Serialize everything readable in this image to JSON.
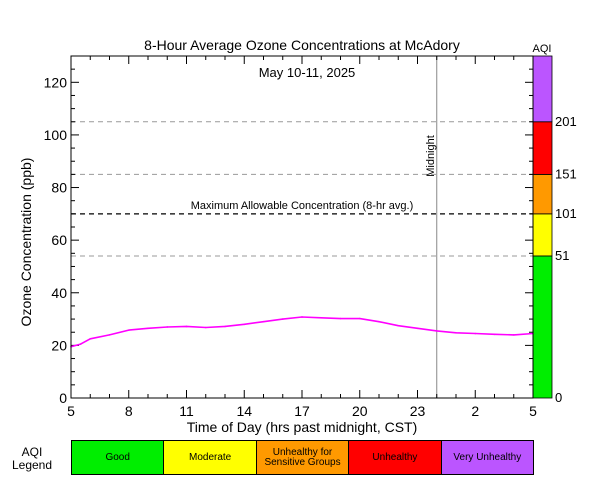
{
  "chart_data": {
    "type": "line",
    "title": "8-Hour Average Ozone Concentrations at McAdory",
    "subtitle": "May 10-11, 2025",
    "xlabel": "Time of Day (hrs past midnight, CST)",
    "ylabel": "Ozone Concentration (ppb)",
    "x_ticks": [
      "5",
      "8",
      "11",
      "14",
      "17",
      "20",
      "23",
      "2",
      "5"
    ],
    "xlim": [
      5,
      29
    ],
    "ylim": [
      0,
      130
    ],
    "y_ticks": [
      0,
      20,
      40,
      60,
      80,
      100,
      120
    ],
    "grid": false,
    "series": [
      {
        "color": "#ff00ff",
        "x": [
          5,
          5.5,
          6,
          7,
          8,
          9,
          10,
          11,
          12,
          13,
          14,
          15,
          16,
          17,
          18,
          19,
          20,
          21,
          22,
          23,
          24,
          25,
          26,
          27,
          28,
          29
        ],
        "y": [
          19.5,
          20.5,
          22.5,
          24,
          25.8,
          26.5,
          27,
          27.2,
          26.8,
          27.2,
          28,
          29,
          30,
          30.8,
          30.5,
          30.2,
          30.2,
          29,
          27.5,
          26.5,
          25.5,
          24.8,
          24.5,
          24.2,
          24,
          24.5
        ]
      }
    ],
    "reference_lines": [
      {
        "y": 54,
        "style": "dashed",
        "color": "#999999"
      },
      {
        "y": 70,
        "style": "dashed",
        "color": "#000000",
        "label": "Maximum Allowable Concentration (8-hr avg.)"
      },
      {
        "y": 85,
        "style": "dashed",
        "color": "#999999"
      },
      {
        "y": 105,
        "style": "dashed",
        "color": "#999999"
      }
    ],
    "midnight_marker": {
      "x": 24,
      "label": "Midnight"
    },
    "aqi_bar": {
      "title": "AQI",
      "bands": [
        {
          "from": 0,
          "to": 54,
          "color": "#00ee00"
        },
        {
          "from": 54,
          "to": 70,
          "color": "#ffff00"
        },
        {
          "from": 70,
          "to": 85,
          "color": "#ff9900"
        },
        {
          "from": 85,
          "to": 105,
          "color": "#ff0000"
        },
        {
          "from": 105,
          "to": 130,
          "color": "#bb55ff"
        }
      ],
      "labels": [
        {
          "y": 0,
          "text": "0"
        },
        {
          "y": 54,
          "text": "51"
        },
        {
          "y": 70,
          "text": "101"
        },
        {
          "y": 85,
          "text": "151"
        },
        {
          "y": 105,
          "text": "201"
        }
      ]
    }
  },
  "legend": {
    "title_line1": "AQI",
    "title_line2": "Legend",
    "items": [
      {
        "label": "Good",
        "color": "#00ee00"
      },
      {
        "label": "Moderate",
        "color": "#ffff00"
      },
      {
        "label": "Unhealthy for Sensitive Groups",
        "color": "#ff9900"
      },
      {
        "label": "Unhealthy",
        "color": "#ff0000"
      },
      {
        "label": "Very Unhealthy",
        "color": "#bb55ff"
      }
    ]
  }
}
